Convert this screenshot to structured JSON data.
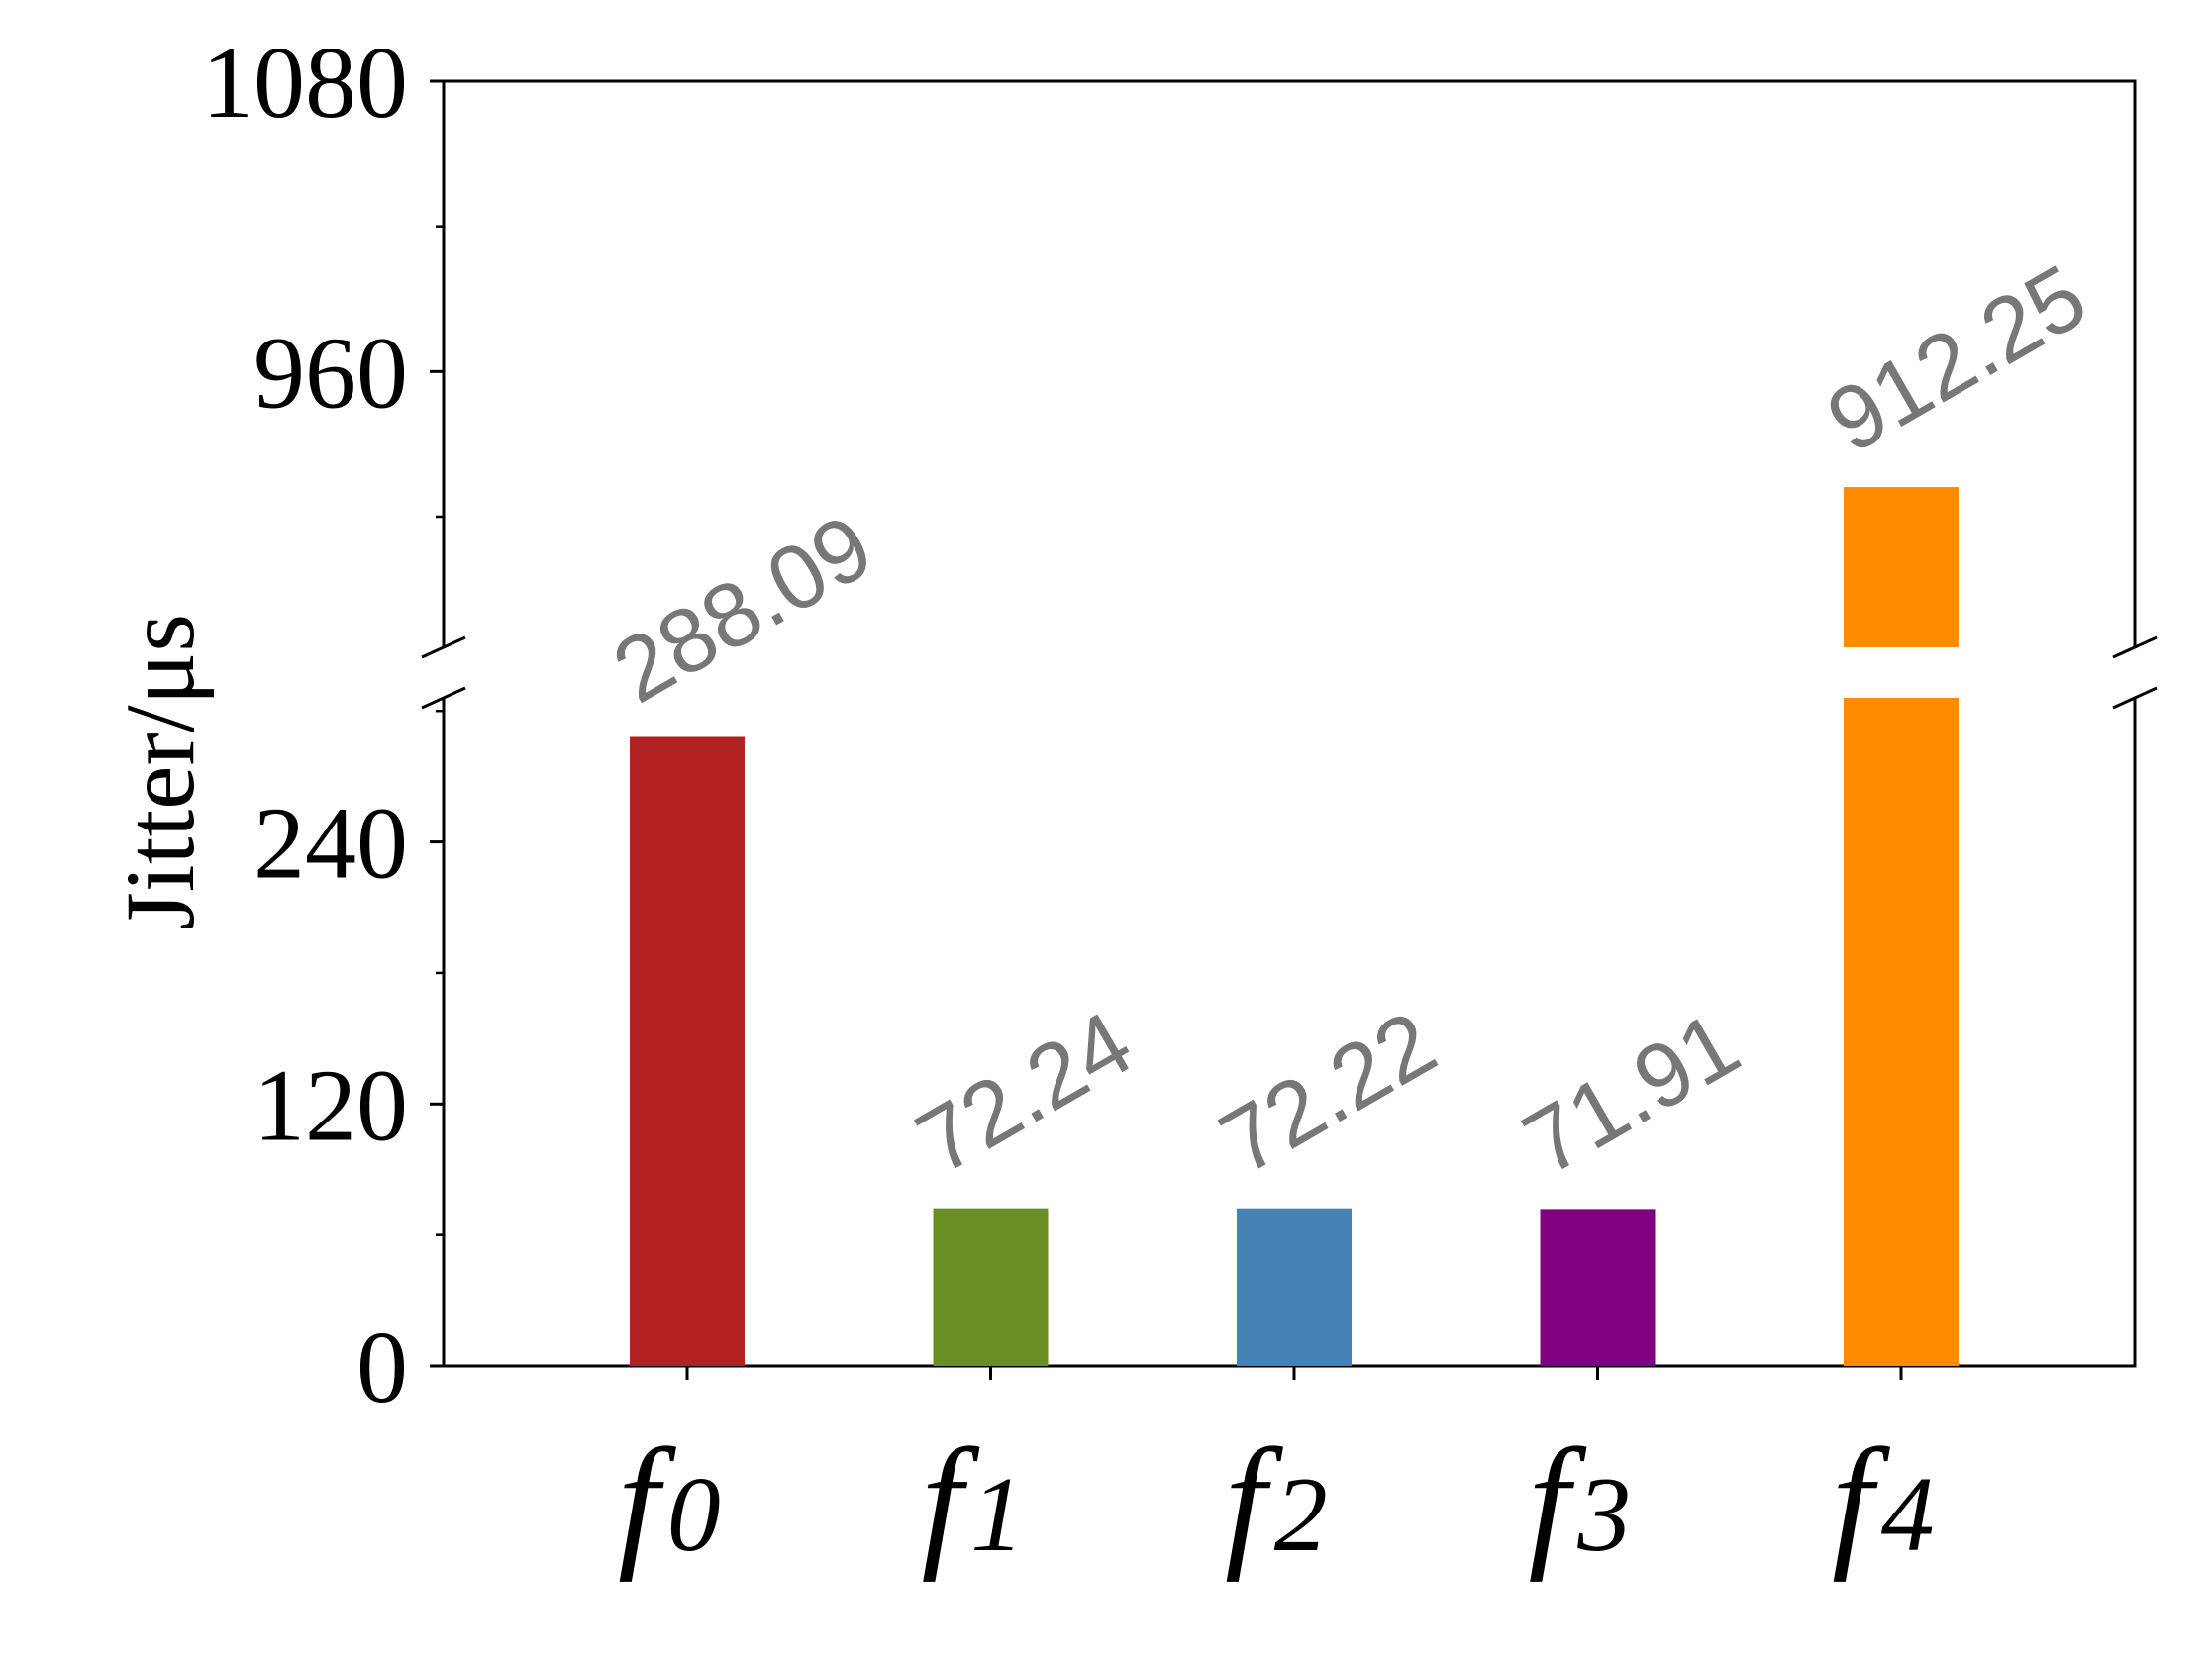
{
  "chart_data": {
    "type": "bar",
    "title": "",
    "xlabel": "",
    "ylabel": "Jitter/μs",
    "categories": [
      {
        "main": "f",
        "sub": "0"
      },
      {
        "main": "f",
        "sub": "1"
      },
      {
        "main": "f",
        "sub": "2"
      },
      {
        "main": "f",
        "sub": "3"
      },
      {
        "main": "f",
        "sub": "4"
      }
    ],
    "values": [
      288.09,
      72.24,
      72.22,
      71.91,
      912.25
    ],
    "value_labels": [
      "288.09",
      "72.24",
      "72.22",
      "71.91",
      "912.25"
    ],
    "colors": [
      "#b22222",
      "#6b8e23",
      "#4682b4",
      "#800080",
      "#ff8c00"
    ],
    "broken_axis": {
      "lower_range": [
        0,
        306
      ],
      "upper_range": [
        846,
        1080
      ]
    },
    "yticks_lower": [
      0,
      120,
      240
    ],
    "yticks_upper": [
      960,
      1080
    ],
    "grid": false,
    "legend": "none"
  }
}
